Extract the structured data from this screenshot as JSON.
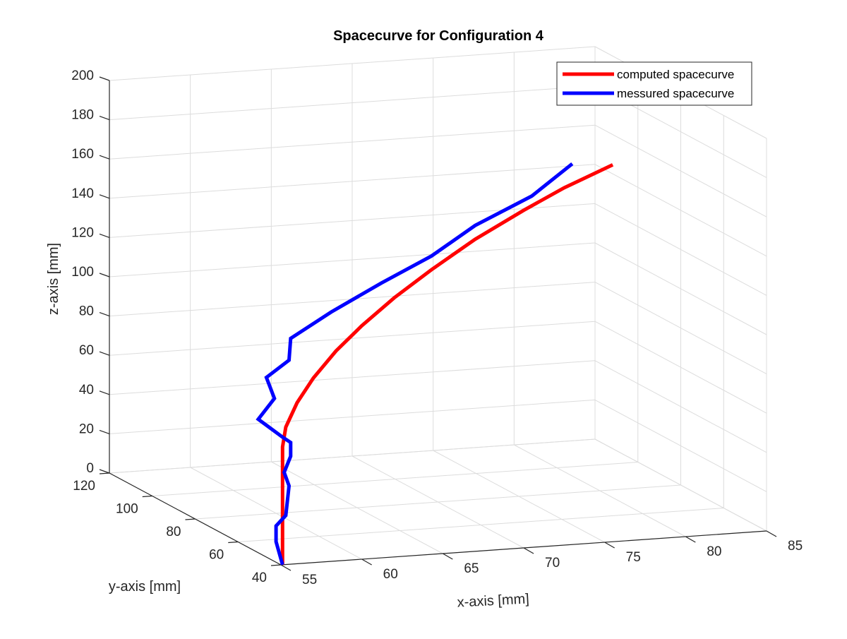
{
  "chart_data": {
    "type": "line",
    "title": "Spacecurve for Configuration 4",
    "xlabel": "x-axis [mm]",
    "ylabel": "y-axis [mm]",
    "zlabel": "z-axis [mm]",
    "xlim": [
      55,
      85
    ],
    "ylim": [
      40,
      120
    ],
    "zlim": [
      0,
      200
    ],
    "x_ticks": [
      "55",
      "60",
      "65",
      "70",
      "75",
      "80",
      "85"
    ],
    "y_ticks": [
      "40",
      "60",
      "80",
      "100",
      "120"
    ],
    "z_ticks": [
      "0",
      "20",
      "40",
      "60",
      "80",
      "100",
      "120",
      "140",
      "160",
      "180",
      "200"
    ],
    "grid": true,
    "legend_position": "top-right",
    "series": [
      {
        "name": "computed spacecurve",
        "color": "#ff0000",
        "points": [
          {
            "x": 55.1,
            "y": 40,
            "z": 0
          },
          {
            "x": 55.1,
            "y": 40,
            "z": 15
          },
          {
            "x": 55.1,
            "y": 40,
            "z": 30
          },
          {
            "x": 55.1,
            "y": 40,
            "z": 45
          },
          {
            "x": 55.1,
            "y": 40,
            "z": 60
          },
          {
            "x": 55.3,
            "y": 40,
            "z": 70
          },
          {
            "x": 56.0,
            "y": 40,
            "z": 82
          },
          {
            "x": 57.0,
            "y": 40,
            "z": 94
          },
          {
            "x": 58.4,
            "y": 40,
            "z": 107
          },
          {
            "x": 60.0,
            "y": 40,
            "z": 119
          },
          {
            "x": 62.0,
            "y": 40,
            "z": 132
          },
          {
            "x": 64.3,
            "y": 40,
            "z": 145
          },
          {
            "x": 67.0,
            "y": 40,
            "z": 159
          },
          {
            "x": 70.0,
            "y": 40,
            "z": 172
          },
          {
            "x": 72.5,
            "y": 40,
            "z": 182
          },
          {
            "x": 75.5,
            "y": 40,
            "z": 192
          }
        ]
      },
      {
        "name": "messured spacecurve",
        "color": "#0000ff",
        "points": [
          {
            "x": 55.1,
            "y": 40,
            "z": 0
          },
          {
            "x": 54.7,
            "y": 40,
            "z": 12
          },
          {
            "x": 54.7,
            "y": 40,
            "z": 20
          },
          {
            "x": 55.3,
            "y": 40,
            "z": 25
          },
          {
            "x": 55.5,
            "y": 40,
            "z": 40
          },
          {
            "x": 55.2,
            "y": 40,
            "z": 47
          },
          {
            "x": 55.6,
            "y": 40,
            "z": 55
          },
          {
            "x": 55.6,
            "y": 40,
            "z": 62
          },
          {
            "x": 55.1,
            "y": 40,
            "z": 65
          },
          {
            "x": 53.6,
            "y": 40,
            "z": 75
          },
          {
            "x": 54.6,
            "y": 40,
            "z": 85
          },
          {
            "x": 54.1,
            "y": 40,
            "z": 96
          },
          {
            "x": 55.5,
            "y": 40,
            "z": 104
          },
          {
            "x": 55.6,
            "y": 40,
            "z": 115
          },
          {
            "x": 58.1,
            "y": 40,
            "z": 127
          },
          {
            "x": 61.2,
            "y": 40,
            "z": 140
          },
          {
            "x": 64.3,
            "y": 40,
            "z": 152
          },
          {
            "x": 67.0,
            "y": 40,
            "z": 166
          },
          {
            "x": 70.5,
            "y": 40,
            "z": 179
          },
          {
            "x": 73.0,
            "y": 40,
            "z": 194
          }
        ]
      }
    ]
  }
}
